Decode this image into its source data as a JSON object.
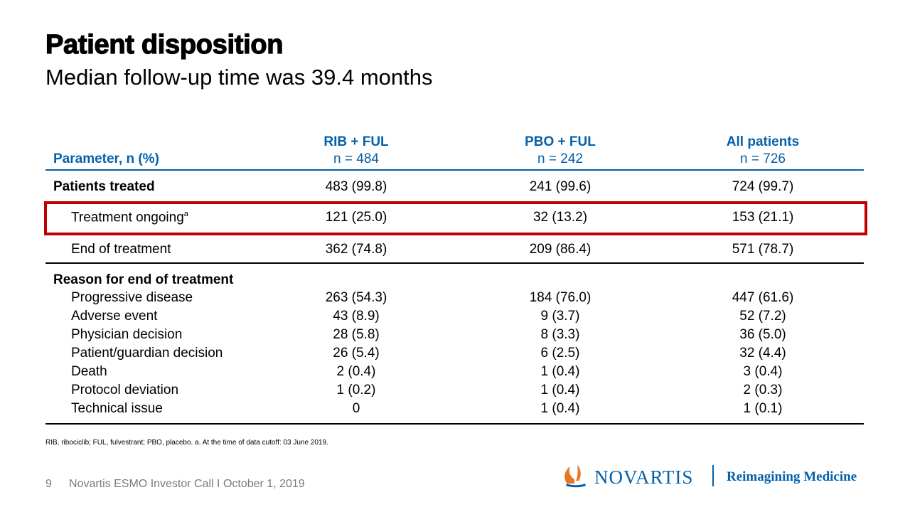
{
  "header": {
    "title": "Patient disposition",
    "subtitle": "Median follow-up time was 39.4 months"
  },
  "table": {
    "param_header": "Parameter, n (%)",
    "columns": [
      {
        "name": "RIB + FUL",
        "n": "n = 484"
      },
      {
        "name": "PBO + FUL",
        "n": "n = 242"
      },
      {
        "name": "All patients",
        "n": "n = 726"
      }
    ],
    "rows": [
      {
        "label": "Patients treated",
        "values": [
          "483 (99.8)",
          "241 (99.6)",
          "724 (99.7)"
        ]
      },
      {
        "label": "Treatment ongoing",
        "sup": "a",
        "values": [
          "121 (25.0)",
          "32 (13.2)",
          "153 (21.1)"
        ]
      },
      {
        "label": "End of treatment",
        "values": [
          "362 (74.8)",
          "209 (86.4)",
          "571 (78.7)"
        ]
      }
    ],
    "reason_header": "Reason for end of treatment",
    "reasons": [
      {
        "label": "Progressive disease",
        "values": [
          "263 (54.3)",
          "184 (76.0)",
          "447 (61.6)"
        ]
      },
      {
        "label": "Adverse event",
        "values": [
          "43 (8.9)",
          "9 (3.7)",
          "52 (7.2)"
        ]
      },
      {
        "label": "Physician decision",
        "values": [
          "28 (5.8)",
          "8 (3.3)",
          "36 (5.0)"
        ]
      },
      {
        "label": "Patient/guardian decision",
        "values": [
          "26 (5.4)",
          "6 (2.5)",
          "32 (4.4)"
        ]
      },
      {
        "label": "Death",
        "values": [
          "2 (0.4)",
          "1 (0.4)",
          "3 (0.4)"
        ]
      },
      {
        "label": "Protocol deviation",
        "values": [
          "1 (0.2)",
          "1 (0.4)",
          "2 (0.3)"
        ]
      },
      {
        "label": "Technical issue",
        "values": [
          "0",
          "1 (0.4)",
          "1 (0.1)"
        ]
      }
    ]
  },
  "footnote": "RIB, ribociclib; FUL, fulvestrant; PBO, placebo.    a. At the time of data cutoff: 03 June 2019.",
  "footer": {
    "page_number": "9",
    "event": "Novartis ESMO Investor Call  I  October 1, 2019"
  },
  "logo": {
    "brand": "NOVARTIS",
    "tagline": "Reimagining Medicine"
  },
  "colors": {
    "accent_blue": "#0460A9",
    "highlight_red": "#C00000"
  }
}
